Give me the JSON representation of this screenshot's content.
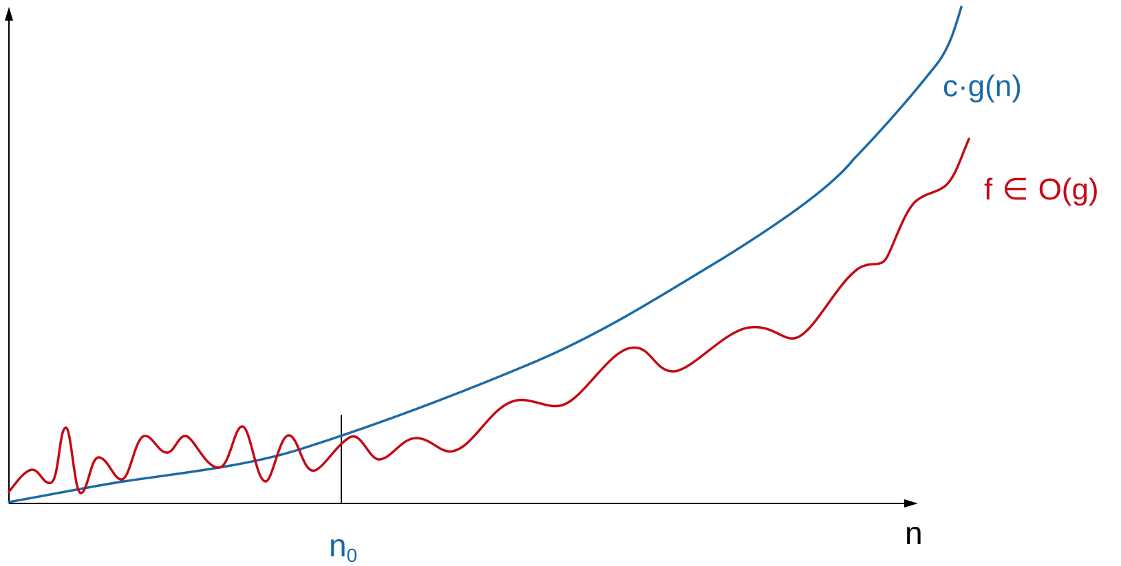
{
  "colors": {
    "axes": "#000000",
    "cg_curve": "#1b6aa6",
    "f_curve": "#c40a14"
  },
  "labels": {
    "cg": "c·g(n)",
    "f_prefix": "f",
    "f_op": "∈",
    "f_suffix": "O(g)",
    "x_axis": "n",
    "n0_main": "n",
    "n0_sub": "0"
  }
}
